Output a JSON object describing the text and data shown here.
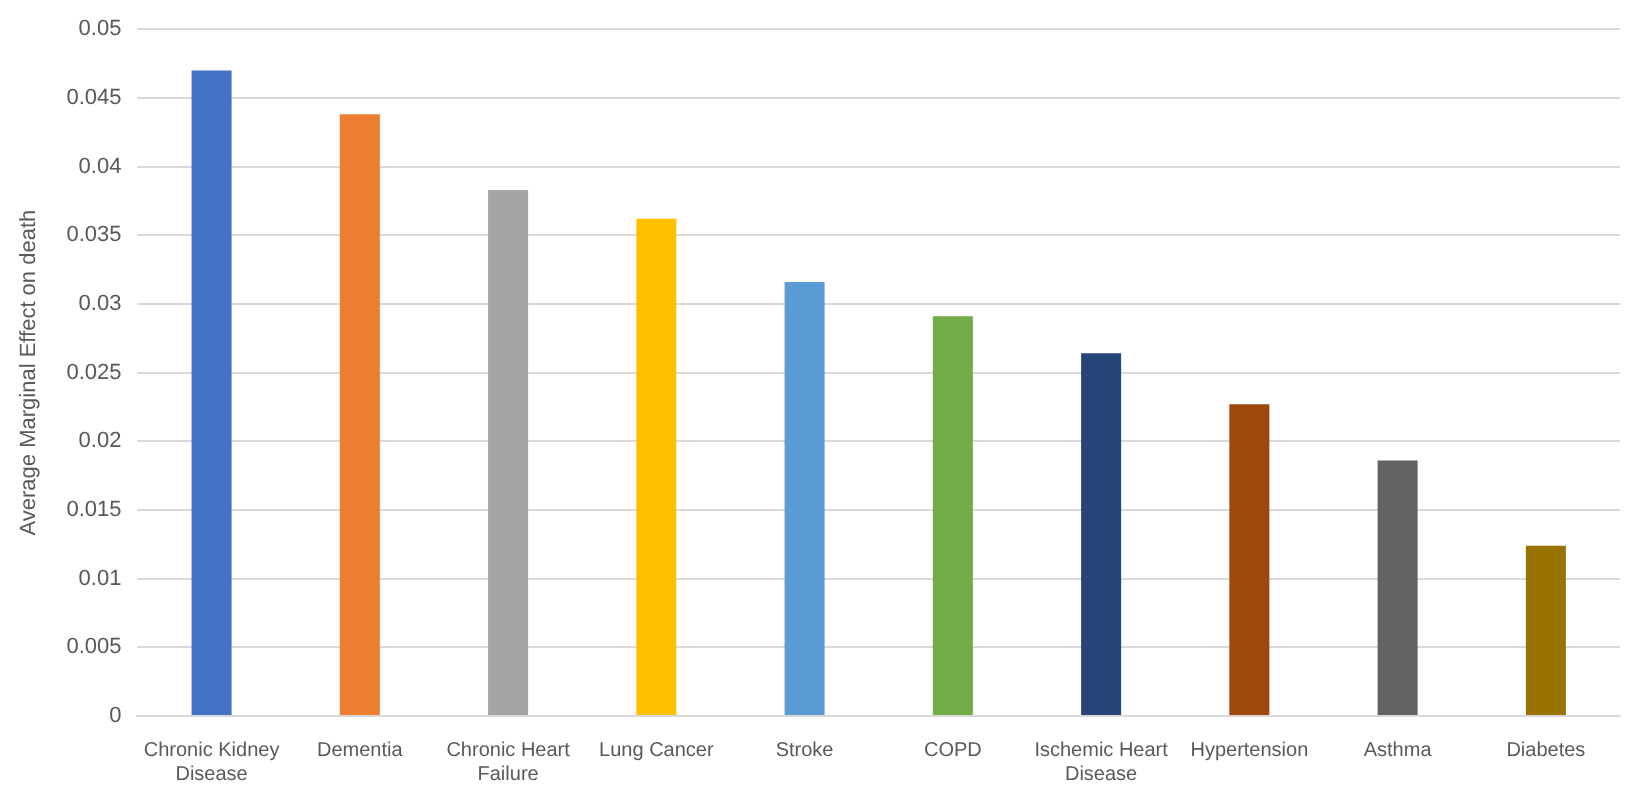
{
  "chart_data": {
    "type": "bar",
    "ylabel": "Average Marginal Effect on death",
    "categories": [
      "Chronic Kidney Disease",
      "Dementia",
      "Chronic Heart Failure",
      "Lung Cancer",
      "Stroke",
      "COPD",
      "Ischemic Heart Disease",
      "Hypertension",
      "Asthma",
      "Diabetes"
    ],
    "values": [
      0.047,
      0.0438,
      0.0383,
      0.0362,
      0.0316,
      0.0291,
      0.0264,
      0.0227,
      0.0186,
      0.0124
    ],
    "colors": [
      "#4472c4",
      "#ed7d31",
      "#a5a5a5",
      "#ffc000",
      "#5b9bd5",
      "#70ad47",
      "#264478",
      "#9e480e",
      "#636363",
      "#997300"
    ],
    "ylim": [
      0,
      0.05
    ],
    "yticks": [
      0,
      0.005,
      0.01,
      0.015,
      0.02,
      0.025,
      0.03,
      0.035,
      0.04,
      0.045,
      0.05
    ],
    "grid": "y",
    "legend": false
  }
}
